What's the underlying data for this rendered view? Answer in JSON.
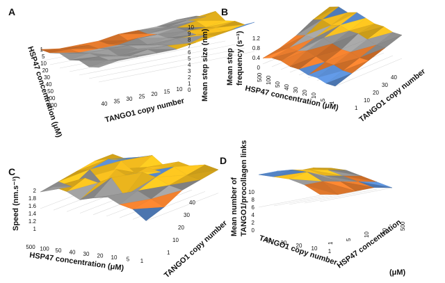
{
  "colors": {
    "orange": "#EC7E2E",
    "gray": "#9C9C9C",
    "yellow": "#F6BE1E",
    "blue": "#5B8FD6",
    "green": "#6FA544",
    "red": "#C0392B"
  },
  "chart_data": [
    {
      "panel": "A",
      "type": "surface",
      "x": {
        "label": "TANGO1 copy number",
        "ticks": [
          "40",
          "35",
          "30",
          "25",
          "20",
          "15",
          "10"
        ]
      },
      "y": {
        "label": "HSP47 concentration (μM)",
        "ticks": [
          "1",
          "5",
          "10",
          "20",
          "30",
          "40",
          "50",
          "100",
          "500"
        ]
      },
      "z": {
        "label": "Mean step size (nm)",
        "ticks": [
          "0",
          "1",
          "2",
          "3",
          "4",
          "5",
          "6",
          "7",
          "8",
          "9",
          "10"
        ],
        "range": [
          0,
          10
        ]
      },
      "values": [
        [
          4,
          3,
          3,
          3,
          4,
          4,
          4,
          5,
          5
        ],
        [
          4,
          4,
          4,
          3,
          3,
          4,
          5,
          6,
          6
        ],
        [
          5,
          4,
          4,
          4,
          5,
          5,
          6,
          7,
          9
        ],
        [
          4,
          5,
          5,
          5,
          4,
          5,
          6,
          6,
          7
        ],
        [
          5,
          5,
          4,
          5,
          5,
          6,
          6,
          7,
          8
        ],
        [
          4,
          5,
          5,
          6,
          6,
          5,
          7,
          7,
          8
        ],
        [
          5,
          6,
          6,
          6,
          6,
          7,
          8,
          9,
          10
        ]
      ]
    },
    {
      "panel": "B",
      "type": "surface",
      "x": {
        "label": "TANGO1 copy number",
        "ticks": [
          "1",
          "10",
          "20",
          "30",
          "40"
        ]
      },
      "y": {
        "label": "HSP47 concentration (μM)",
        "ticks": [
          "500",
          "100",
          "50",
          "40",
          "30",
          "20",
          "10",
          "5",
          "1"
        ]
      },
      "z": {
        "label": "Mean step frequency (s⁻¹)",
        "ticks": [
          "0",
          "0.4",
          "0.8",
          "1.2"
        ],
        "range": [
          0,
          1.2
        ]
      },
      "values": [
        [
          0.2,
          0.3,
          0.5,
          0.8,
          1.0
        ],
        [
          0.3,
          0.4,
          0.6,
          0.9,
          1.1
        ],
        [
          0.3,
          0.4,
          0.6,
          0.8,
          1.0
        ],
        [
          0.2,
          0.5,
          0.7,
          0.9,
          1.1
        ],
        [
          0.2,
          0.4,
          0.6,
          0.8,
          1.0
        ],
        [
          0.1,
          0.3,
          0.5,
          0.8,
          0.9
        ],
        [
          0.1,
          0.3,
          0.5,
          0.7,
          0.9
        ],
        [
          0.0,
          0.2,
          0.4,
          0.6,
          0.8
        ],
        [
          0.0,
          0.2,
          0.4,
          0.6,
          0.8
        ]
      ]
    },
    {
      "panel": "C",
      "type": "surface",
      "x": {
        "label": "TANGO1 copy number",
        "ticks": [
          "1",
          "10",
          "20",
          "30",
          "40"
        ]
      },
      "y": {
        "label": "HSP47 concentration (μM)",
        "ticks": [
          "500",
          "100",
          "50",
          "40",
          "30",
          "20",
          "10",
          "5",
          "1"
        ]
      },
      "z": {
        "label": "Speed (nm.s⁻¹)",
        "ticks": [
          "1",
          "1.2",
          "1.4",
          "1.6",
          "1.8",
          "2"
        ],
        "range": [
          1,
          2
        ]
      },
      "values": [
        [
          1.5,
          1.6,
          1.7,
          1.8,
          1.8
        ],
        [
          1.7,
          1.5,
          1.8,
          1.9,
          1.7
        ],
        [
          1.6,
          1.8,
          1.4,
          1.9,
          1.8
        ],
        [
          1.4,
          1.7,
          1.9,
          1.6,
          1.9
        ],
        [
          1.5,
          1.9,
          1.7,
          1.8,
          1.6
        ],
        [
          1.6,
          1.4,
          1.9,
          1.7,
          1.8
        ],
        [
          1.4,
          1.6,
          1.8,
          1.9,
          1.7
        ],
        [
          1.3,
          1.4,
          1.6,
          1.7,
          1.8
        ],
        [
          1.0,
          1.2,
          1.5,
          1.6,
          1.7
        ]
      ]
    },
    {
      "panel": "D",
      "type": "surface",
      "x": {
        "label": "TANGO1 copy number",
        "ticks": [
          "40",
          "30",
          "20",
          "10",
          "1"
        ]
      },
      "y": {
        "label": "HSP47 concentration (μM)",
        "ticks": [
          "1",
          "5",
          "10",
          "50",
          "500"
        ]
      },
      "z": {
        "label": "Mean number of TANGO1/procollagen links",
        "ticks": [
          "0",
          "2",
          "4",
          "6",
          "8",
          "10"
        ],
        "range": [
          0,
          10
        ]
      },
      "values": [
        [
          9,
          9,
          8,
          8,
          7
        ],
        [
          8,
          9,
          8,
          7,
          6
        ],
        [
          7,
          8,
          6,
          5,
          4
        ],
        [
          5,
          5,
          4,
          3,
          2
        ],
        [
          2,
          1,
          1,
          1,
          0
        ]
      ]
    }
  ],
  "panels": {
    "A": {
      "x_label": "TANGO1 copy number",
      "y_label": "HSP47 concentration (μM)",
      "z_label": "Mean step size (nm)"
    },
    "B": {
      "x_label": "TANGO1 copy number",
      "y_label": "HSP47 concentration (μM)",
      "z_label_1": "Mean step",
      "z_label_2": "frequency (s⁻¹)"
    },
    "C": {
      "x_label": "TANGO1 copy number",
      "y_label": "HSP47 concentration (μM)",
      "z_label": "Speed (nm.s⁻¹)"
    },
    "D": {
      "x_label": "TANGO1 copy number",
      "y_label_1": "HSP47 concentration",
      "y_label_2": "(μM)",
      "z_label_1": "Mean number of",
      "z_label_2": "TANGO1/procollagen links"
    }
  }
}
